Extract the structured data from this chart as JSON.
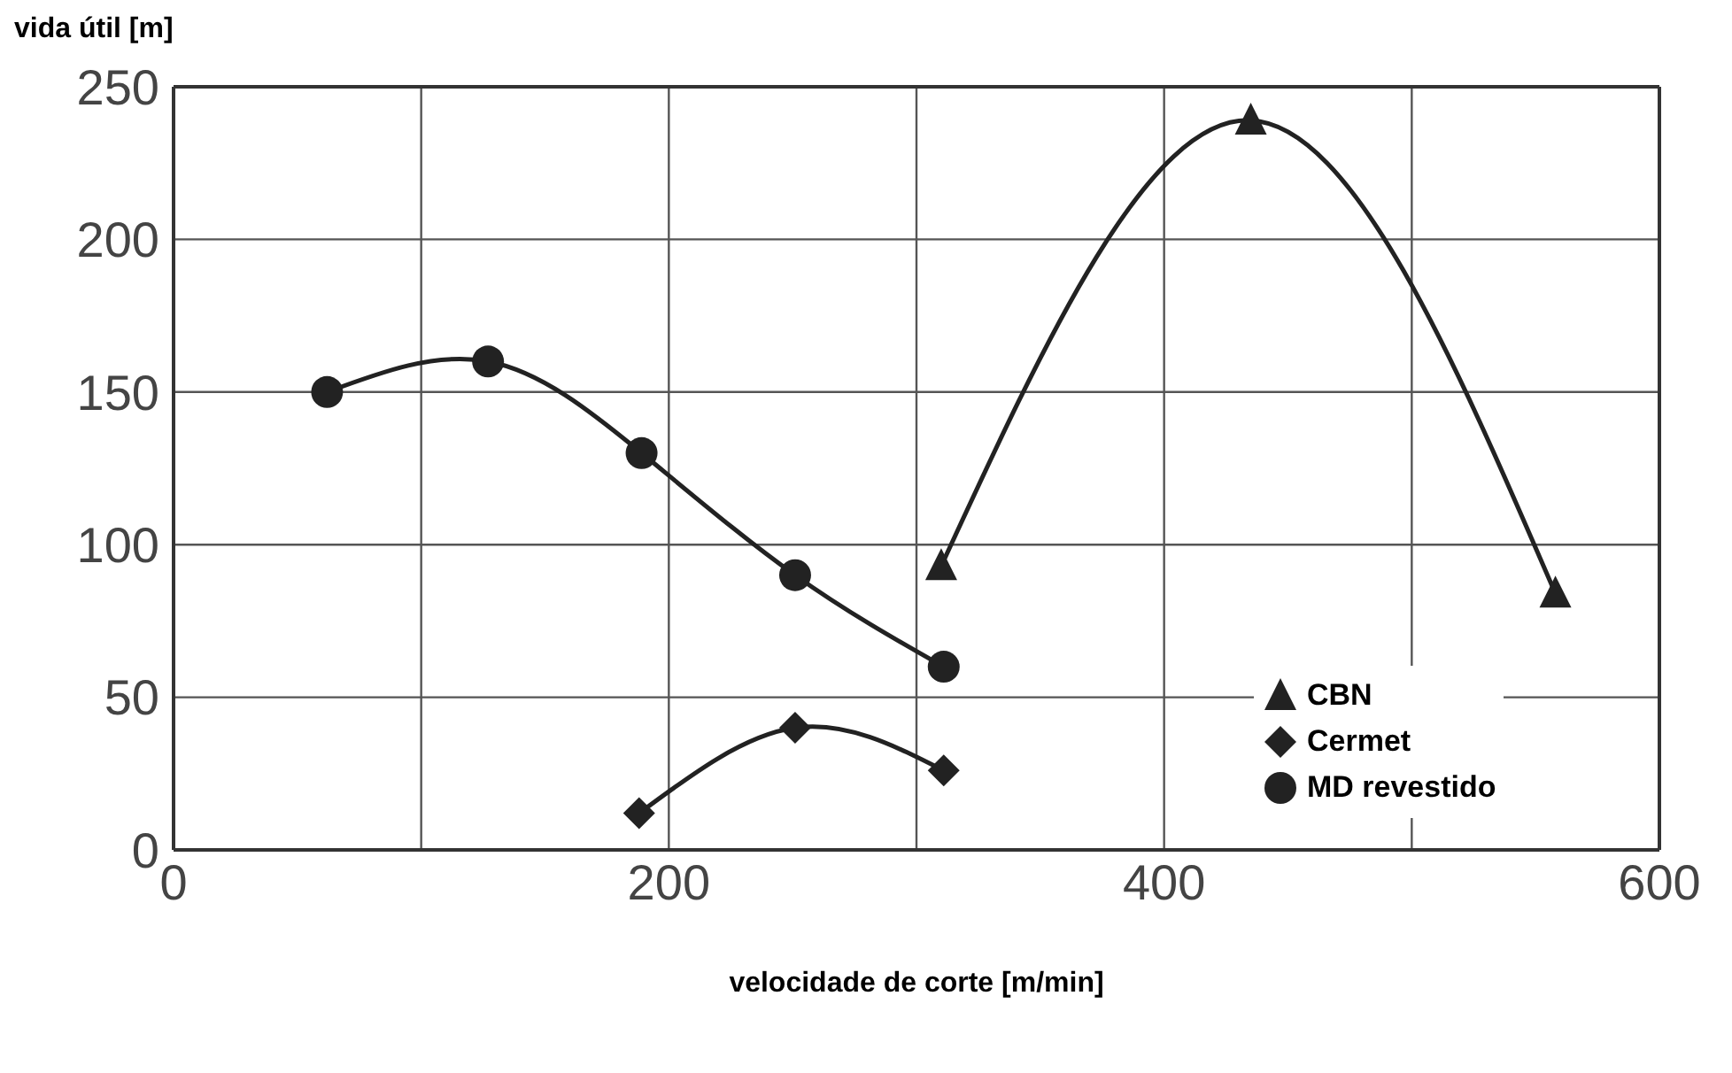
{
  "chart_data": {
    "type": "line",
    "xlabel": "velocidade de corte [m/min]",
    "ylabel": "vida útil [m]",
    "xlim": [
      0,
      600
    ],
    "ylim": [
      0,
      250
    ],
    "xticks": [
      0,
      {
        "value": 100,
        "label": null
      },
      200,
      {
        "value": 300,
        "label": null
      },
      400,
      {
        "value": 500,
        "label": null
      },
      600
    ],
    "yticks": [
      0,
      50,
      100,
      150,
      200,
      250
    ],
    "grid": true,
    "legend": "bottom right",
    "line_style": "solid",
    "series": [
      {
        "name": "CBN",
        "color": "#222222",
        "marker": "triangle",
        "x": [
          310,
          435,
          558
        ],
        "values": [
          93,
          239,
          84
        ]
      },
      {
        "name": "Cermet",
        "color": "#222222",
        "marker": "diamond",
        "x": [
          188,
          251,
          311
        ],
        "values": [
          12,
          40,
          26
        ]
      },
      {
        "name": "MD revestido",
        "color": "#222222",
        "marker": "circle",
        "x": [
          62,
          127,
          189,
          251,
          311
        ],
        "values": [
          150,
          160,
          130,
          90,
          60
        ]
      }
    ]
  }
}
